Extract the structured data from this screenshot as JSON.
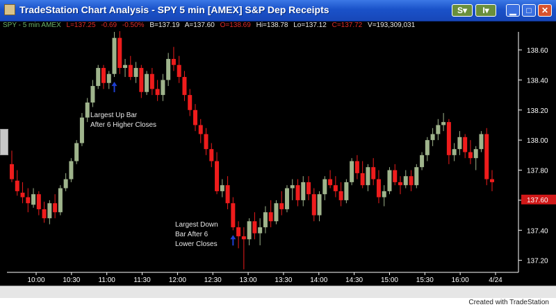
{
  "window": {
    "title": "TradeStation Chart Analysis - SPY  5 min  [AMEX] S&P Dep Receipts",
    "buttons": {
      "s_menu": "S",
      "i_menu": "I"
    }
  },
  "info_bar": {
    "symbol": "SPY - 5 min  AMEX",
    "last": "L=137.25",
    "net_change": "-0.69",
    "pct_change": "-0.50%",
    "bid": "B=137.19",
    "ask": "A=137.60",
    "open": "O=138.69",
    "high": "Hi=138.78",
    "low": "Lo=137.12",
    "close": "C=137.72",
    "volume": "V=193,309,031"
  },
  "annotations": [
    {
      "lines": [
        "Largest Up Bar",
        "After 6 Higher Closes"
      ]
    },
    {
      "lines": [
        "Largest Down",
        "Bar After 6",
        "Lower Closes"
      ]
    }
  ],
  "price_label": "137.60",
  "credit": "Created with TradeStation",
  "colors": {
    "up": "#9fb48c",
    "down": "#ee1c1c",
    "arrow": "#1e3fd0",
    "label_bg": "#d01818",
    "axis": "#ffffff"
  },
  "chart_data": {
    "type": "candlestick",
    "y_ticks": [
      "138.60",
      "138.40",
      "138.20",
      "138.00",
      "137.80",
      "137.60",
      "137.40",
      "137.20"
    ],
    "x_ticks": [
      "10:00",
      "10:30",
      "11:00",
      "11:30",
      "12:00",
      "12:30",
      "13:00",
      "13:30",
      "14:00",
      "14:30",
      "15:00",
      "15:30",
      "16:00",
      "4/24"
    ],
    "ylim": [
      137.12,
      138.72
    ],
    "candles": [
      [
        137.84,
        137.93,
        137.72,
        137.74
      ],
      [
        137.73,
        137.8,
        137.63,
        137.66
      ],
      [
        137.65,
        137.72,
        137.58,
        137.62
      ],
      [
        137.62,
        137.68,
        137.52,
        137.58
      ],
      [
        137.57,
        137.68,
        137.55,
        137.64
      ],
      [
        137.64,
        137.66,
        137.5,
        137.54
      ],
      [
        137.54,
        137.59,
        137.45,
        137.48
      ],
      [
        137.48,
        137.6,
        137.44,
        137.58
      ],
      [
        137.58,
        137.64,
        137.48,
        137.52
      ],
      [
        137.52,
        137.7,
        137.5,
        137.68
      ],
      [
        137.68,
        137.78,
        137.66,
        137.74
      ],
      [
        137.74,
        137.88,
        137.72,
        137.86
      ],
      [
        137.86,
        138.0,
        137.84,
        137.98
      ],
      [
        137.98,
        138.18,
        137.96,
        138.15
      ],
      [
        138.15,
        138.28,
        138.12,
        138.25
      ],
      [
        138.25,
        138.4,
        138.22,
        138.36
      ],
      [
        138.36,
        138.5,
        138.34,
        138.48
      ],
      [
        138.48,
        138.5,
        138.34,
        138.38
      ],
      [
        138.38,
        138.46,
        138.34,
        138.44
      ],
      [
        138.44,
        138.72,
        138.42,
        138.68
      ],
      [
        138.68,
        138.75,
        138.44,
        138.48
      ],
      [
        138.48,
        138.54,
        138.42,
        138.5
      ],
      [
        138.5,
        138.56,
        138.4,
        138.42
      ],
      [
        138.42,
        138.52,
        138.38,
        138.48
      ],
      [
        138.48,
        138.5,
        138.28,
        138.32
      ],
      [
        138.32,
        138.46,
        138.3,
        138.44
      ],
      [
        138.44,
        138.48,
        138.3,
        138.34
      ],
      [
        138.34,
        138.4,
        138.26,
        138.3
      ],
      [
        138.3,
        138.44,
        138.26,
        138.4
      ],
      [
        138.4,
        138.58,
        138.36,
        138.54
      ],
      [
        138.54,
        138.62,
        138.46,
        138.5
      ],
      [
        138.5,
        138.56,
        138.38,
        138.42
      ],
      [
        138.42,
        138.46,
        138.26,
        138.3
      ],
      [
        138.3,
        138.34,
        138.16,
        138.2
      ],
      [
        138.2,
        138.24,
        138.06,
        138.1
      ],
      [
        138.1,
        138.14,
        137.98,
        138.04
      ],
      [
        138.04,
        138.08,
        137.9,
        137.94
      ],
      [
        137.94,
        137.98,
        137.82,
        137.86
      ],
      [
        137.86,
        137.92,
        137.64,
        137.66
      ],
      [
        137.66,
        137.74,
        137.62,
        137.7
      ],
      [
        137.7,
        137.76,
        137.54,
        137.58
      ],
      [
        137.58,
        137.62,
        137.4,
        137.42
      ],
      [
        137.42,
        137.46,
        137.28,
        137.36
      ],
      [
        137.36,
        137.42,
        137.14,
        137.34
      ],
      [
        137.34,
        137.48,
        137.3,
        137.46
      ],
      [
        137.46,
        137.52,
        137.34,
        137.38
      ],
      [
        137.38,
        137.48,
        137.3,
        137.42
      ],
      [
        137.42,
        137.56,
        137.38,
        137.52
      ],
      [
        137.52,
        137.6,
        137.42,
        137.46
      ],
      [
        137.46,
        137.6,
        137.44,
        137.58
      ],
      [
        137.58,
        137.66,
        137.5,
        137.54
      ],
      [
        137.54,
        137.7,
        137.52,
        137.68
      ],
      [
        137.68,
        137.74,
        137.6,
        137.7
      ],
      [
        137.7,
        137.74,
        137.56,
        137.6
      ],
      [
        137.6,
        137.76,
        137.56,
        137.72
      ],
      [
        137.72,
        137.76,
        137.6,
        137.64
      ],
      [
        137.64,
        137.68,
        137.46,
        137.5
      ],
      [
        137.5,
        137.66,
        137.46,
        137.64
      ],
      [
        137.64,
        137.76,
        137.6,
        137.74
      ],
      [
        137.74,
        137.8,
        137.68,
        137.7
      ],
      [
        137.7,
        137.76,
        137.62,
        137.66
      ],
      [
        137.66,
        137.72,
        137.56,
        137.6
      ],
      [
        137.6,
        137.74,
        137.58,
        137.72
      ],
      [
        137.72,
        137.88,
        137.7,
        137.86
      ],
      [
        137.86,
        137.9,
        137.74,
        137.78
      ],
      [
        137.78,
        137.86,
        137.68,
        137.7
      ],
      [
        137.7,
        137.84,
        137.66,
        137.82
      ],
      [
        137.82,
        137.88,
        137.7,
        137.74
      ],
      [
        137.74,
        137.8,
        137.58,
        137.62
      ],
      [
        137.62,
        137.7,
        137.56,
        137.66
      ],
      [
        137.66,
        137.82,
        137.64,
        137.8
      ],
      [
        137.8,
        137.84,
        137.7,
        137.72
      ],
      [
        137.72,
        137.76,
        137.64,
        137.7
      ],
      [
        137.7,
        137.8,
        137.68,
        137.76
      ],
      [
        137.76,
        137.8,
        137.66,
        137.7
      ],
      [
        137.7,
        137.84,
        137.68,
        137.82
      ],
      [
        137.82,
        137.92,
        137.8,
        137.9
      ],
      [
        137.9,
        138.02,
        137.86,
        138.0
      ],
      [
        138.0,
        138.08,
        137.96,
        138.04
      ],
      [
        138.04,
        138.14,
        138.0,
        138.1
      ],
      [
        138.1,
        138.18,
        138.06,
        138.12
      ],
      [
        138.12,
        138.14,
        137.84,
        137.9
      ],
      [
        137.9,
        137.98,
        137.86,
        137.94
      ],
      [
        137.94,
        138.06,
        137.9,
        138.02
      ],
      [
        138.02,
        138.04,
        137.88,
        137.92
      ],
      [
        137.92,
        138.0,
        137.84,
        137.88
      ],
      [
        137.88,
        137.96,
        137.8,
        137.94
      ],
      [
        137.94,
        138.06,
        137.92,
        138.04
      ],
      [
        138.04,
        138.08,
        137.7,
        137.74
      ],
      [
        137.74,
        137.8,
        137.66,
        137.72
      ]
    ]
  }
}
